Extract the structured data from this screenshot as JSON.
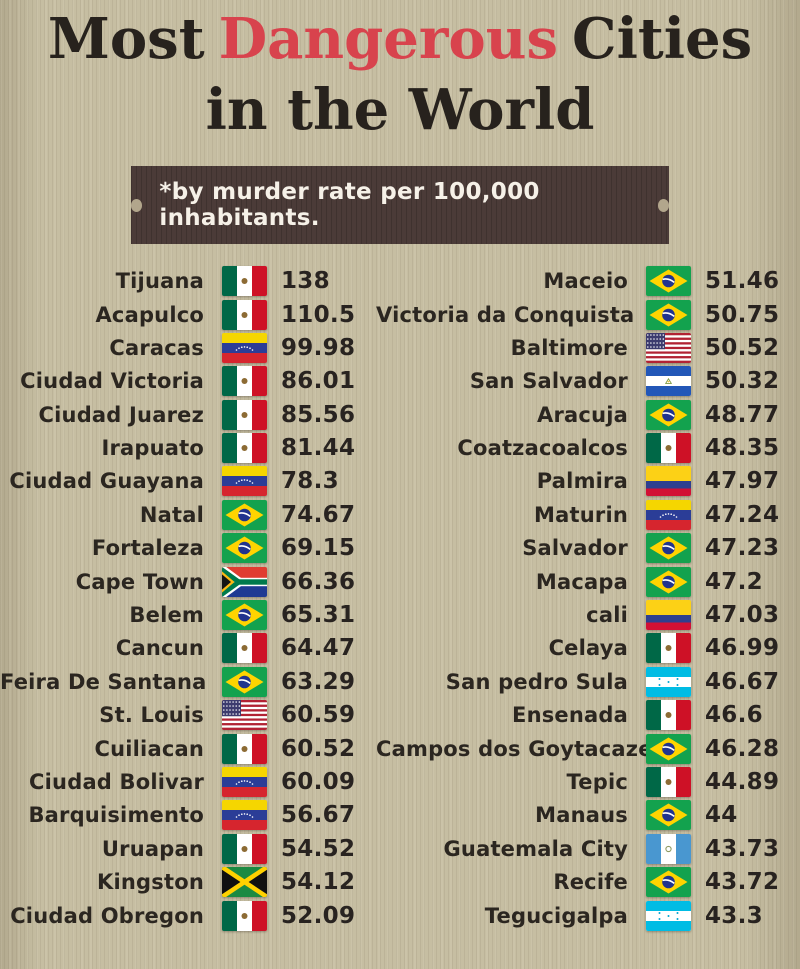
{
  "title": {
    "word1": "Most",
    "word2": "Dangerous",
    "word3": "Cities",
    "line2": "in the World"
  },
  "subtitle": {
    "text": "*by murder rate per 100,000 inhabitants."
  },
  "colors": {
    "background": "#c6bea2",
    "banner": "#4b3b38",
    "title_dark": "#27221d",
    "title_red": "#d8434d",
    "text_dark": "#2b2620"
  },
  "chart_data": {
    "type": "table",
    "title": "Most Dangerous Cities in the World",
    "note": "*by murder rate per 100,000 inhabitants.",
    "columns": [
      "city",
      "country_flag",
      "murder_rate_per_100k"
    ],
    "left_rows": [
      {
        "city": "Tijuana",
        "country": "mexico",
        "rate": "138"
      },
      {
        "city": "Acapulco",
        "country": "mexico",
        "rate": "110.5"
      },
      {
        "city": "Caracas",
        "country": "venezuela",
        "rate": "99.98"
      },
      {
        "city": "Ciudad Victoria",
        "country": "mexico",
        "rate": "86.01"
      },
      {
        "city": "Ciudad Juarez",
        "country": "mexico",
        "rate": "85.56"
      },
      {
        "city": "Irapuato",
        "country": "mexico",
        "rate": "81.44"
      },
      {
        "city": "Ciudad Guayana",
        "country": "venezuela",
        "rate": "78.3"
      },
      {
        "city": "Natal",
        "country": "brazil",
        "rate": "74.67"
      },
      {
        "city": "Fortaleza",
        "country": "brazil",
        "rate": "69.15"
      },
      {
        "city": "Cape Town",
        "country": "south-africa",
        "rate": "66.36"
      },
      {
        "city": "Belem",
        "country": "brazil",
        "rate": "65.31"
      },
      {
        "city": "Cancun",
        "country": "mexico",
        "rate": "64.47"
      },
      {
        "city": "Feira De Santana",
        "country": "brazil",
        "rate": "63.29"
      },
      {
        "city": "St. Louis",
        "country": "usa",
        "rate": "60.59"
      },
      {
        "city": "Cuiliacan",
        "country": "mexico",
        "rate": "60.52"
      },
      {
        "city": "Ciudad Bolivar",
        "country": "venezuela",
        "rate": "60.09"
      },
      {
        "city": "Barquisimento",
        "country": "venezuela",
        "rate": "56.67"
      },
      {
        "city": "Uruapan",
        "country": "mexico",
        "rate": "54.52"
      },
      {
        "city": "Kingston",
        "country": "jamaica",
        "rate": "54.12"
      },
      {
        "city": "Ciudad Obregon",
        "country": "mexico",
        "rate": "52.09"
      }
    ],
    "right_rows": [
      {
        "city": "Maceio",
        "country": "brazil",
        "rate": "51.46"
      },
      {
        "city": "Victoria da Conquista",
        "country": "brazil",
        "rate": "50.75"
      },
      {
        "city": "Baltimore",
        "country": "usa",
        "rate": "50.52"
      },
      {
        "city": "San Salvador",
        "country": "el-salvador",
        "rate": "50.32"
      },
      {
        "city": "Aracuja",
        "country": "brazil",
        "rate": "48.77"
      },
      {
        "city": "Coatzacoalcos",
        "country": "mexico",
        "rate": "48.35"
      },
      {
        "city": "Palmira",
        "country": "colombia",
        "rate": "47.97"
      },
      {
        "city": "Maturin",
        "country": "venezuela",
        "rate": "47.24"
      },
      {
        "city": "Salvador",
        "country": "brazil",
        "rate": "47.23"
      },
      {
        "city": "Macapa",
        "country": "brazil",
        "rate": "47.2"
      },
      {
        "city": "cali",
        "country": "colombia",
        "rate": "47.03"
      },
      {
        "city": "Celaya",
        "country": "mexico",
        "rate": "46.99"
      },
      {
        "city": "San pedro Sula",
        "country": "honduras",
        "rate": "46.67"
      },
      {
        "city": "Ensenada",
        "country": "mexico",
        "rate": "46.6"
      },
      {
        "city": "Campos dos Goytacazes",
        "country": "brazil",
        "rate": "46.28"
      },
      {
        "city": "Tepic",
        "country": "mexico",
        "rate": "44.89"
      },
      {
        "city": "Manaus",
        "country": "brazil",
        "rate": "44"
      },
      {
        "city": "Guatemala City",
        "country": "guatemala",
        "rate": "43.73"
      },
      {
        "city": "Recife",
        "country": "brazil",
        "rate": "43.72"
      },
      {
        "city": "Tegucigalpa",
        "country": "honduras",
        "rate": "43.3"
      }
    ]
  }
}
